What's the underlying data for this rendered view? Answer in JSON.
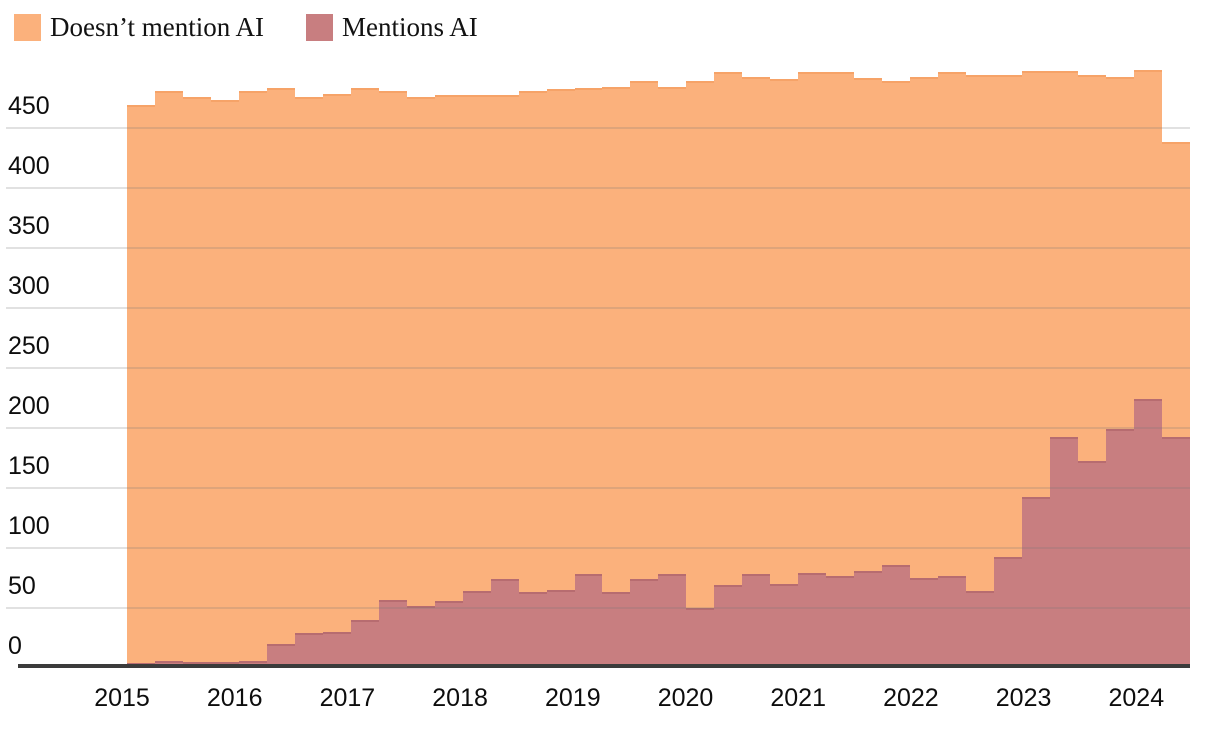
{
  "legend": {
    "items": [
      {
        "label": "Doesn’t mention AI",
        "color": "#FBB17C"
      },
      {
        "label": "Mentions AI",
        "color": "#C87E80"
      }
    ]
  },
  "colors": {
    "doesnt_mention": "#FBB17C",
    "mentions": "#C87E80",
    "gridline": "#e4e4e4",
    "axis_line": "#3b3b3b",
    "background": "#ffffff"
  },
  "chart_data": {
    "type": "area",
    "subtype": "stacked-step-area-quarterly",
    "title": "",
    "xlabel": "",
    "ylabel": "",
    "ylim": [
      0,
      500
    ],
    "grid": true,
    "legend_position": "top-left",
    "y_ticks": [
      0,
      50,
      100,
      150,
      200,
      250,
      300,
      350,
      400,
      450
    ],
    "x_ticks": [
      "2015",
      "2016",
      "2017",
      "2018",
      "2019",
      "2020",
      "2021",
      "2022",
      "2023",
      "2024"
    ],
    "categories": [
      "2015 Q1",
      "2015 Q2",
      "2015 Q3",
      "2015 Q4",
      "2016 Q1",
      "2016 Q2",
      "2016 Q3",
      "2016 Q4",
      "2017 Q1",
      "2017 Q2",
      "2017 Q3",
      "2017 Q4",
      "2018 Q1",
      "2018 Q2",
      "2018 Q3",
      "2018 Q4",
      "2019 Q1",
      "2019 Q2",
      "2019 Q3",
      "2019 Q4",
      "2020 Q1",
      "2020 Q2",
      "2020 Q3",
      "2020 Q4",
      "2021 Q1",
      "2021 Q2",
      "2021 Q3",
      "2021 Q4",
      "2022 Q1",
      "2022 Q2",
      "2022 Q3",
      "2022 Q4",
      "2023 Q1",
      "2023 Q2",
      "2023 Q3",
      "2023 Q4",
      "2024 Q1",
      "2024 Q2"
    ],
    "series": [
      {
        "name": "Doesn't mention AI",
        "color": "#FBB17C",
        "stack_order": "top",
        "values": [
          466,
          475,
          471,
          469,
          475,
          464,
          447,
          449,
          444,
          424,
          424,
          422,
          414,
          404,
          418,
          418,
          406,
          422,
          416,
          407,
          440,
          428,
          415,
          421,
          418,
          420,
          411,
          404,
          418,
          420,
          431,
          402,
          355,
          305,
          322,
          294,
          275,
          246
        ]
      },
      {
        "name": "Mentions AI",
        "color": "#C87E80",
        "stack_order": "bottom",
        "values": [
          4,
          6,
          5,
          5,
          6,
          20,
          29,
          30,
          40,
          57,
          52,
          56,
          64,
          74,
          63,
          65,
          78,
          63,
          74,
          78,
          50,
          69,
          78,
          70,
          79,
          77,
          81,
          86,
          75,
          77,
          64,
          93,
          143,
          193,
          173,
          199,
          224,
          193
        ]
      }
    ]
  }
}
